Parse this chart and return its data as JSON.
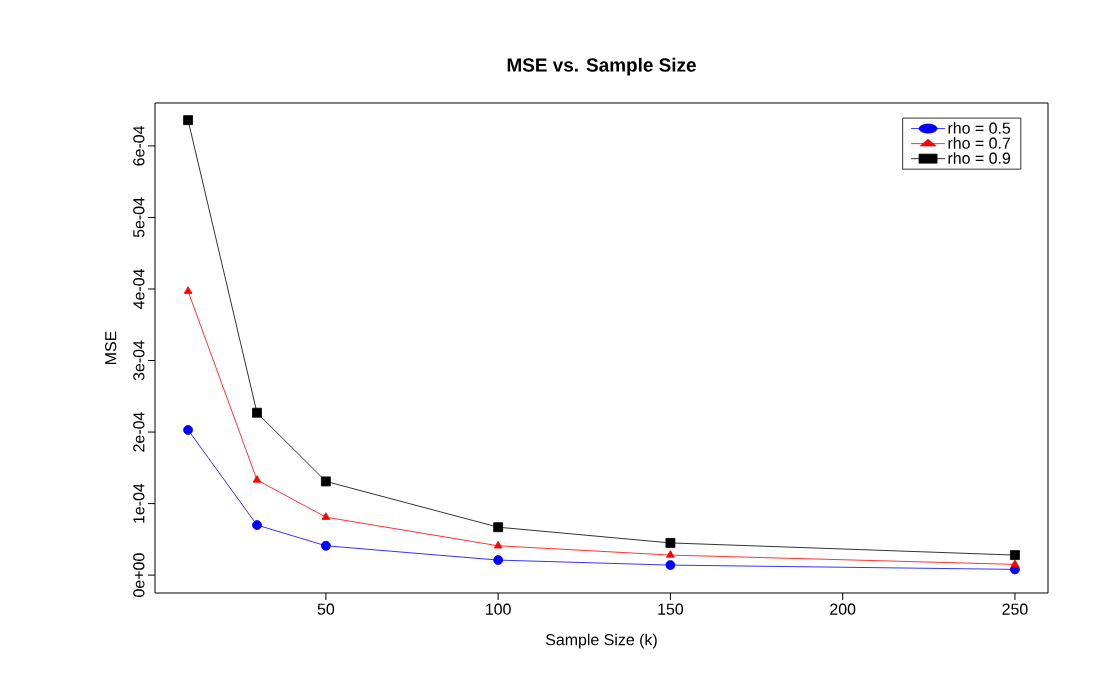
{
  "chart_data": {
    "type": "line",
    "title": "MSE vs. Sample Size",
    "xlabel": "Sample Size (k)",
    "ylabel": "MSE",
    "x": [
      10,
      30,
      50,
      100,
      150,
      250
    ],
    "series": [
      {
        "name": "rho = 0.5",
        "color": "#0000ff",
        "marker": "circle",
        "values": [
          0.000203,
          7e-05,
          4.1e-05,
          2.1e-05,
          1.4e-05,
          8e-06
        ]
      },
      {
        "name": "rho = 0.7",
        "color": "#ff0000",
        "marker": "triangle",
        "values": [
          0.000397,
          0.000133,
          8.1e-05,
          4.1e-05,
          2.8e-05,
          1.5e-05
        ]
      },
      {
        "name": "rho = 0.9",
        "color": "#000000",
        "marker": "square",
        "values": [
          0.000636,
          0.000227,
          0.000131,
          6.7e-05,
          4.5e-05,
          2.8e-05
        ]
      }
    ],
    "xlim": [
      0.4,
      259.6
    ],
    "ylim": [
      -2.5e-05,
      0.00066
    ],
    "xticks": [
      50,
      100,
      150,
      200,
      250
    ],
    "yticks": [
      {
        "value": 0,
        "label": "0e+00"
      },
      {
        "value": 0.0001,
        "label": "1e-04"
      },
      {
        "value": 0.0002,
        "label": "2e-04"
      },
      {
        "value": 0.0003,
        "label": "3e-04"
      },
      {
        "value": 0.0004,
        "label": "4e-04"
      },
      {
        "value": 0.0005,
        "label": "5e-04"
      },
      {
        "value": 0.0006,
        "label": "6e-04"
      }
    ],
    "legend": "top right",
    "grid": false,
    "line_style": "solid"
  }
}
